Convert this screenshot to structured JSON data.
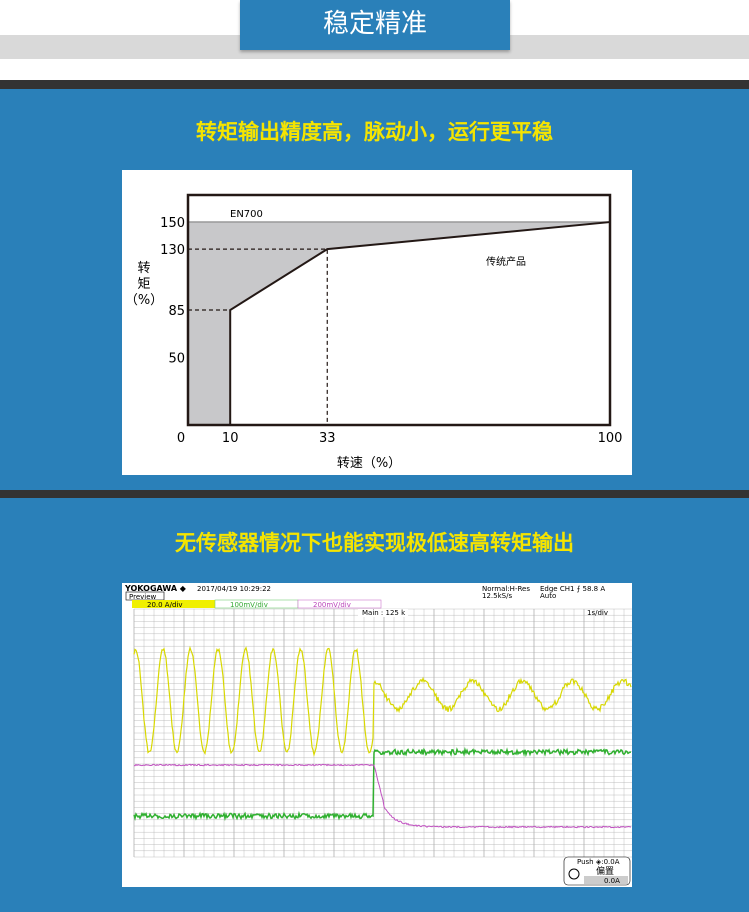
{
  "header": {
    "tab_title": "稳定精准"
  },
  "section1": {
    "heading": "转矩输出精度高，脉动小，运行更平稳"
  },
  "section2": {
    "heading": "无传感器情况下也能实现极低速高转矩输出"
  },
  "chart_data": {
    "type": "area",
    "title": "",
    "xlabel": "转速（%）",
    "ylabel": "转矩（%）",
    "ylabel_chars": [
      "转",
      "矩",
      "（%）"
    ],
    "x_ticks": [
      0,
      10,
      33,
      100
    ],
    "y_ticks": [
      50,
      85,
      130,
      150
    ],
    "xlim": [
      0,
      100
    ],
    "ylim": [
      0,
      170
    ],
    "grid": false,
    "colors": {
      "fill": "#c8c8ca",
      "line": "#231815"
    },
    "series": [
      {
        "name": "EN700",
        "x": [
          0,
          100
        ],
        "y": [
          150,
          150
        ]
      },
      {
        "name": "传统产品",
        "x": [
          10,
          10,
          33,
          100
        ],
        "y": [
          0,
          85,
          130,
          150
        ]
      }
    ],
    "annotations": [
      "EN700",
      "传统产品"
    ]
  },
  "scope": {
    "brand": "YOKOGAWA ◆",
    "datetime": "2017/04/19 10:29:22",
    "mode_label": "Preview",
    "acq": "Normal:H-Res",
    "rate": "12.5kS/s",
    "trigger": "Edge CH1 ⨍ 58.8 A",
    "trigger_mode": "Auto",
    "ch1": "20.0 A/div",
    "ch2": "100mV/div",
    "ch3": "200mV/div",
    "main": "Main : 125 k",
    "timebase": "1s/div",
    "push_label": "Push ◈:0.0A",
    "offset_label": "偏置",
    "offset_value": "0.0A",
    "colors": {
      "ch1": "#d8d800",
      "ch2": "#30b030",
      "ch3": "#c050c0",
      "grid": "#b0b0b0"
    }
  }
}
